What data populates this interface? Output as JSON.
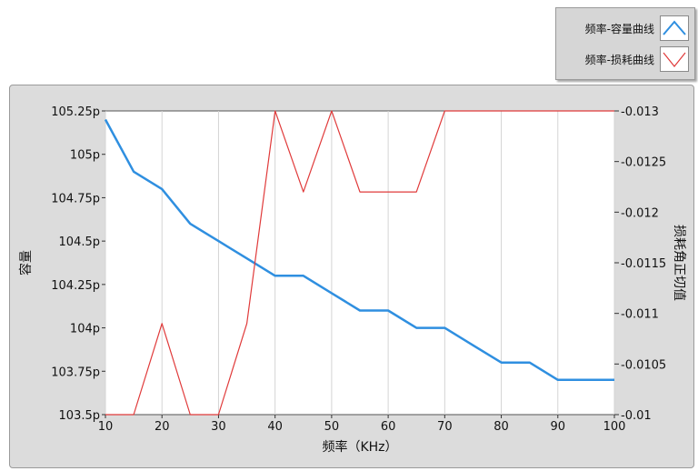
{
  "legend": [
    {
      "label": "频率-容量曲线",
      "color": "#2f8fe0"
    },
    {
      "label": "频率-损耗曲线",
      "color": "#e03a3a"
    }
  ],
  "chart_data": {
    "type": "line",
    "xlabel": "频率（KHz）",
    "ylabel_left": "容量",
    "ylabel_right": "损耗角正切值",
    "xlim": [
      10,
      100
    ],
    "xticks": [
      "10",
      "20",
      "30",
      "40",
      "50",
      "60",
      "70",
      "80",
      "90",
      "100"
    ],
    "ylim_left": [
      103.5,
      105.25
    ],
    "yticks_left": [
      "103.5p",
      "103.75p",
      "104p",
      "104.25p",
      "104.5p",
      "104.75p",
      "105p",
      "105.25p"
    ],
    "ylim_right": [
      0.01,
      0.013
    ],
    "yticks_right": [
      "0.01",
      "0.0105",
      "0.011",
      "0.0115",
      "0.012",
      "0.0125",
      "0.013"
    ],
    "grid": true,
    "x": [
      10,
      15,
      20,
      25,
      30,
      35,
      40,
      45,
      50,
      55,
      60,
      65,
      70,
      75,
      80,
      85,
      90,
      95,
      100
    ],
    "series": [
      {
        "name": "频率-容量曲线",
        "axis": "left",
        "color": "#2f8fe0",
        "values": [
          105.2,
          104.9,
          104.8,
          104.6,
          104.5,
          104.4,
          104.3,
          104.3,
          104.2,
          104.1,
          104.1,
          104.0,
          104.0,
          103.9,
          103.8,
          103.8,
          103.7,
          103.7,
          103.7
        ]
      },
      {
        "name": "频率-损耗曲线",
        "axis": "right",
        "color": "#e03a3a",
        "values": [
          0.01,
          0.01,
          0.0109,
          0.01,
          0.01,
          0.0109,
          0.013,
          0.0122,
          0.013,
          0.0122,
          0.0122,
          0.0122,
          0.013,
          0.013,
          0.013,
          0.013,
          0.013,
          0.013,
          0.013
        ]
      }
    ]
  }
}
